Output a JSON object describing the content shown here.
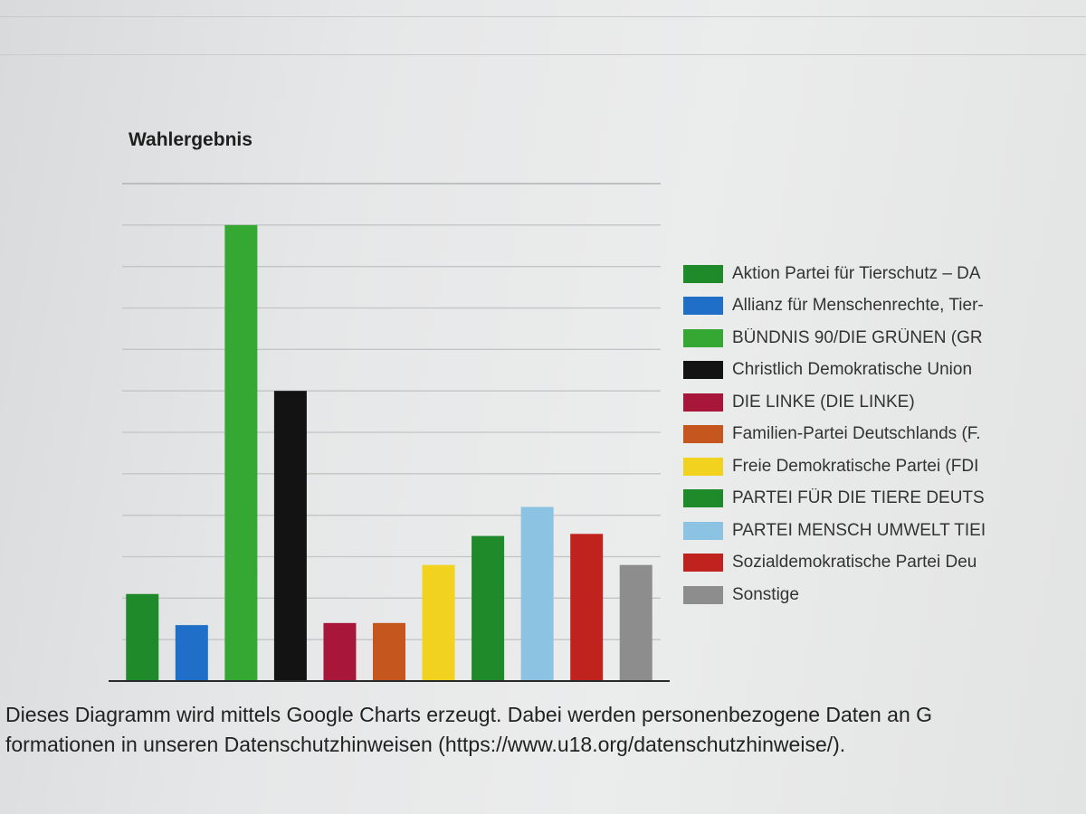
{
  "chart_data": {
    "type": "bar",
    "title": "Wahlergebnis",
    "grid": true,
    "legend_position": "right",
    "categories": [
      "Aktion Partei für Tierschutz – DA",
      "Allianz für Menschenrechte, Tier-",
      "BÜNDNIS 90/DIE GRÜNEN (GR",
      "Christlich Demokratische Union",
      "DIE LINKE (DIE LINKE)",
      "Familien-Partei Deutschlands (F.",
      "Freie Demokratische Partei (FDI",
      "PARTEI FÜR DIE TIERE DEUTS",
      "PARTEI MENSCH UMWELT TIEI",
      "Sozialdemokratische Partei Deu",
      "Sonstige"
    ],
    "values": [
      4.2,
      2.7,
      22.0,
      14.0,
      2.8,
      2.8,
      5.6,
      7.0,
      8.4,
      7.1,
      5.6
    ],
    "colors": [
      "#1f8a2a",
      "#1f6fc8",
      "#35a834",
      "#131313",
      "#a8173a",
      "#c5571e",
      "#f1d31f",
      "#1f8a2a",
      "#8cc3e2",
      "#c0231e",
      "#8d8d8d"
    ],
    "ylim": [
      0,
      24
    ]
  },
  "footer": {
    "line1": "Dieses Diagramm wird mittels Google Charts erzeugt. Dabei werden personenbezogene Daten an G",
    "line2": "formationen in unseren Datenschutzhinweisen (https://www.u18.org/datenschutzhinweise/)."
  }
}
